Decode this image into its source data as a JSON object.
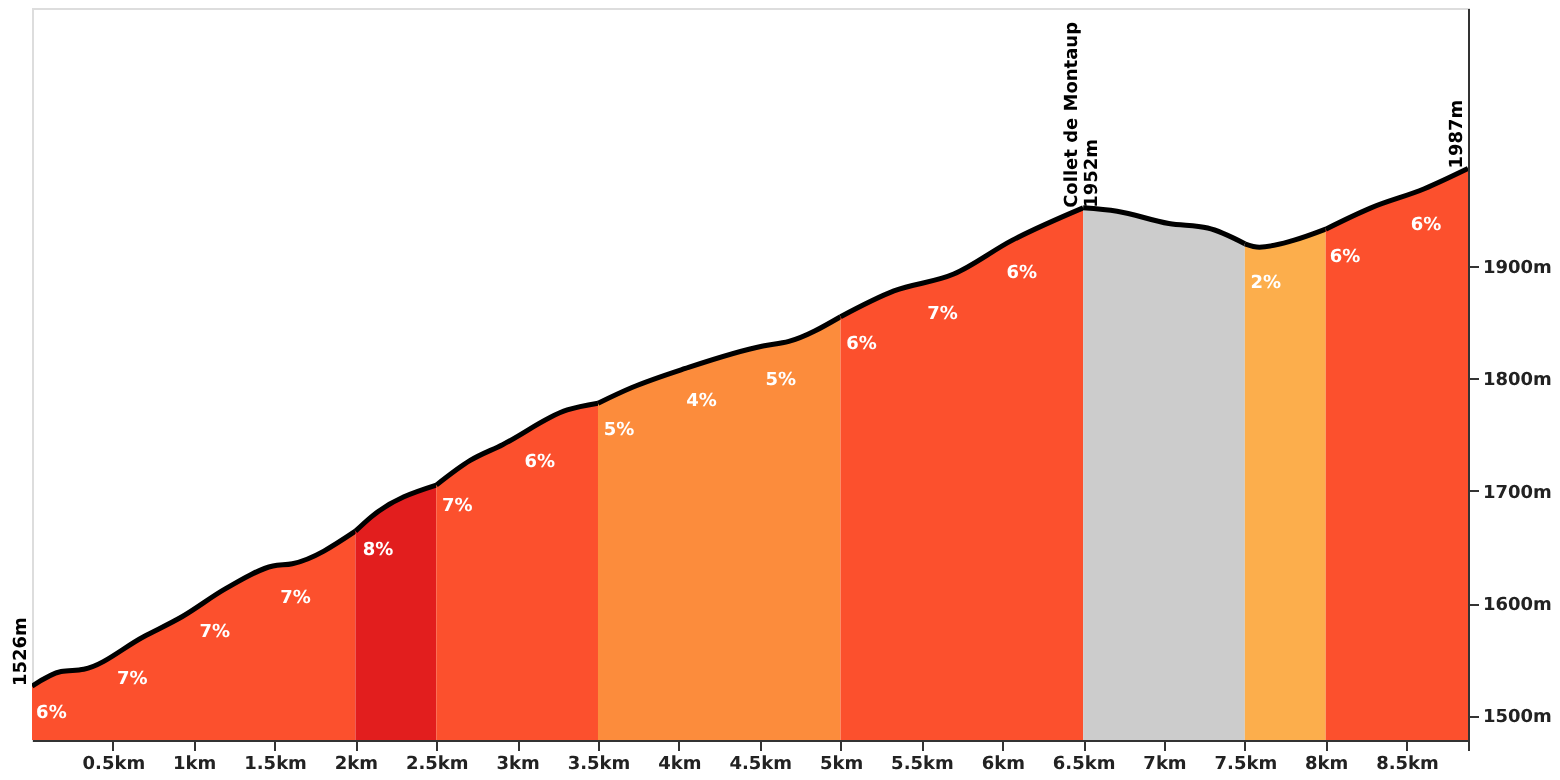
{
  "chart_data": {
    "type": "area",
    "xlim": [
      0,
      8.88
    ],
    "ylim": [
      1478,
      2130
    ],
    "xticks": [
      {
        "value": 0.5,
        "label": "0.5km"
      },
      {
        "value": 1,
        "label": "1km"
      },
      {
        "value": 1.5,
        "label": "1.5km"
      },
      {
        "value": 2,
        "label": "2km"
      },
      {
        "value": 2.5,
        "label": "2.5km"
      },
      {
        "value": 3,
        "label": "3km"
      },
      {
        "value": 3.5,
        "label": "3.5km"
      },
      {
        "value": 4,
        "label": "4km"
      },
      {
        "value": 4.5,
        "label": "4.5km"
      },
      {
        "value": 5,
        "label": "5km"
      },
      {
        "value": 5.5,
        "label": "5.5km"
      },
      {
        "value": 6,
        "label": "6km"
      },
      {
        "value": 6.5,
        "label": "6.5km"
      },
      {
        "value": 7,
        "label": "7km"
      },
      {
        "value": 7.5,
        "label": "7.5km"
      },
      {
        "value": 8,
        "label": "8km"
      },
      {
        "value": 8.5,
        "label": "8.5km"
      },
      {
        "value": 8.88,
        "label": null
      }
    ],
    "yticks": [
      {
        "value": 1500,
        "label": "1500m"
      },
      {
        "value": 1600,
        "label": "1600m"
      },
      {
        "value": 1700,
        "label": "1700m"
      },
      {
        "value": 1800,
        "label": "1800m"
      },
      {
        "value": 1900,
        "label": "1900m"
      }
    ],
    "grid": false,
    "series": [
      {
        "color": "#fc502d",
        "x": [
          0,
          0.18,
          0.32,
          0.69,
          0.93,
          1.2,
          1.49,
          1.61,
          2.0
        ],
        "values": [
          1526,
          1539,
          1541,
          1570,
          1588,
          1613,
          1633,
          1635,
          1664
        ]
      },
      {
        "color": "#e21e1e",
        "x": [
          2.0,
          2.1,
          2.5
        ],
        "values": [
          1664,
          1677,
          1705
        ]
      },
      {
        "color": "#fc502d",
        "x": [
          2.5,
          2.71,
          2.91,
          3.31,
          3.5
        ],
        "values": [
          1705,
          1727,
          1741,
          1772,
          1778
        ]
      },
      {
        "color": "#fc8c3c",
        "x": [
          3.5,
          3.71,
          4.04,
          4.52,
          4.68,
          5.0
        ],
        "values": [
          1778,
          1792,
          1809,
          1829,
          1833,
          1855
        ]
      },
      {
        "color": "#fc502d",
        "x": [
          5.0,
          5.33,
          5.7,
          6.06,
          6.5
        ],
        "values": [
          1855,
          1878,
          1893,
          1923,
          1952
        ]
      },
      {
        "color": "#cccccc",
        "x": [
          6.5,
          6.71,
          7.03,
          7.27,
          7.5
        ],
        "values": [
          1952,
          1949,
          1938,
          1934,
          1920
        ]
      },
      {
        "color": "#fcae4c",
        "x": [
          7.5,
          7.59,
          7.8,
          8.0
        ],
        "values": [
          1920,
          1917,
          1923,
          1933
        ]
      },
      {
        "color": "#fc502d",
        "x": [
          8.0,
          8.28,
          8.61,
          8.88
        ],
        "values": [
          1933,
          1952,
          1969,
          1987
        ]
      }
    ],
    "annotations": [
      {
        "text": "1526m",
        "x": 0,
        "y": 1526
      },
      {
        "text": "Collet de Montaup\n1952m",
        "x": 6.5,
        "y": 1952
      },
      {
        "text": "1987m",
        "x": 8.88,
        "y": 1987
      },
      {
        "text": "6%",
        "x": 0.12,
        "y": 1535
      },
      {
        "text": "7%",
        "x": 0.62,
        "y": 1565
      },
      {
        "text": "7%",
        "x": 1.13,
        "y": 1607
      },
      {
        "text": "7%",
        "x": 1.63,
        "y": 1637
      },
      {
        "text": "8%",
        "x": 2.14,
        "y": 1680
      },
      {
        "text": "7%",
        "x": 2.63,
        "y": 1719
      },
      {
        "text": "6%",
        "x": 3.14,
        "y": 1759
      },
      {
        "text": "5%",
        "x": 3.63,
        "y": 1787
      },
      {
        "text": "4%",
        "x": 4.14,
        "y": 1813
      },
      {
        "text": "5%",
        "x": 4.63,
        "y": 1832
      },
      {
        "text": "6%",
        "x": 5.13,
        "y": 1864
      },
      {
        "text": "7%",
        "x": 5.63,
        "y": 1890
      },
      {
        "text": "6%",
        "x": 6.12,
        "y": 1927
      },
      {
        "text": "2%",
        "x": 7.63,
        "y": 1918
      },
      {
        "text": "6%",
        "x": 8.12,
        "y": 1941
      },
      {
        "text": "6%",
        "x": 8.62,
        "y": 1970
      }
    ]
  }
}
